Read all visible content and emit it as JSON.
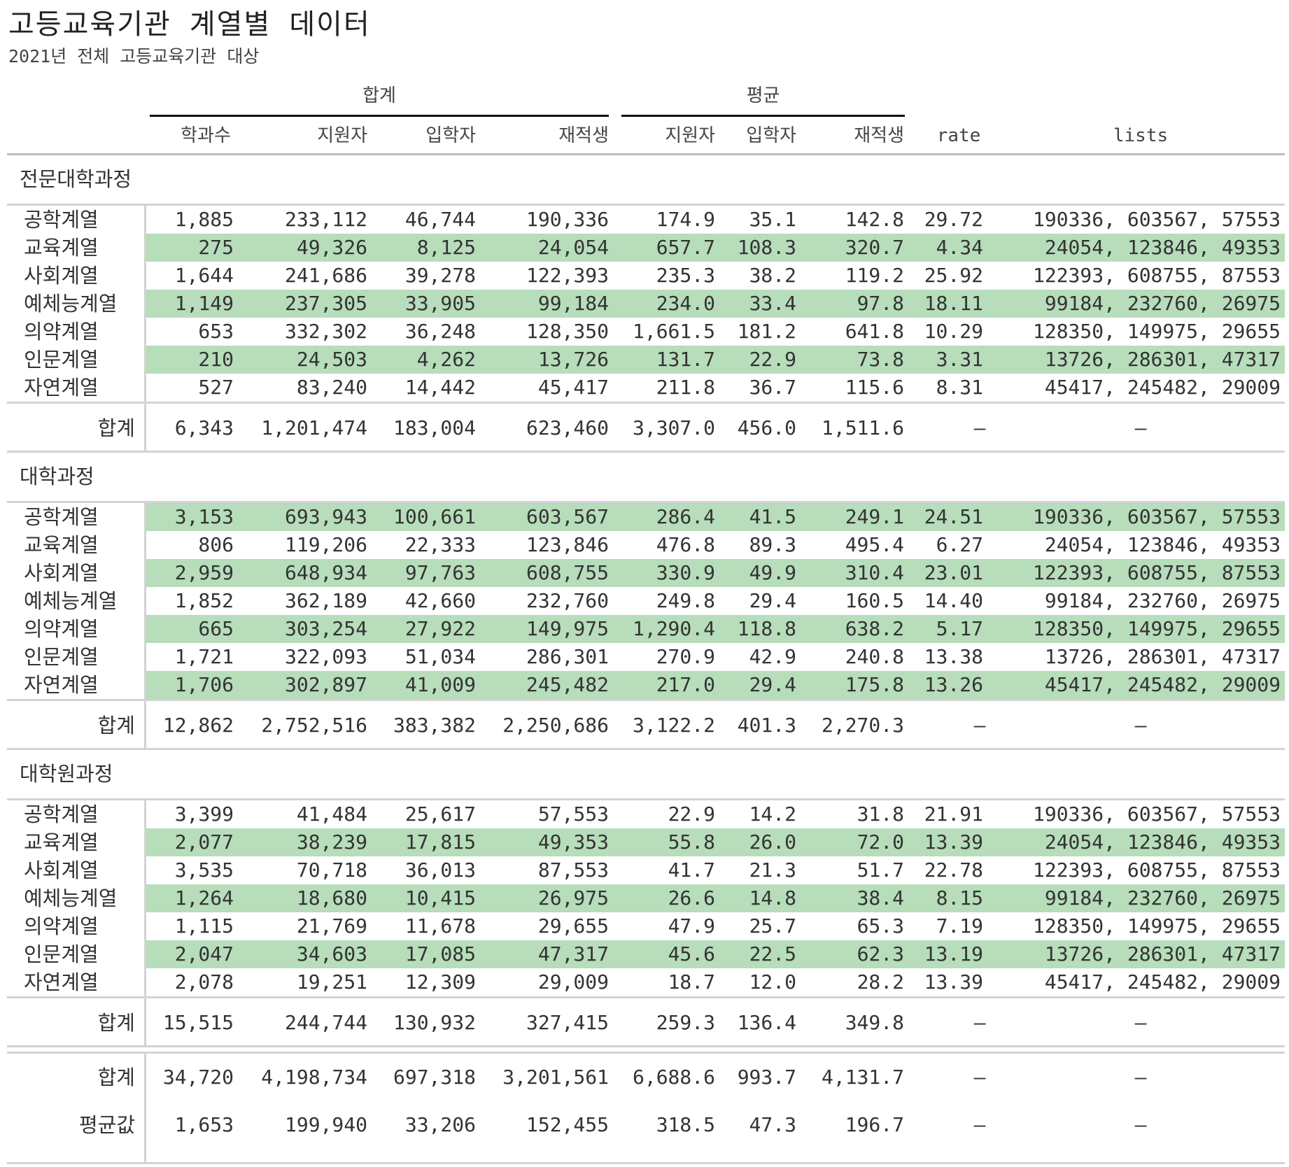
{
  "title": "고등교육기관 계열별 데이터",
  "subtitle": "2021년 전체 고등교육기관 대상",
  "spanners": [
    {
      "label": "합계",
      "first_col": 0,
      "last_col": 3
    },
    {
      "label": "평균",
      "first_col": 4,
      "last_col": 6
    }
  ],
  "columns": [
    "학과수",
    "지원자",
    "입학자",
    "재적생",
    "지원자",
    "입학자",
    "재적생",
    "rate",
    "lists"
  ],
  "groups": [
    {
      "label": "전문대학과정",
      "rows": [
        {
          "label": "공학계열",
          "shaded": false,
          "cells": [
            "1,885",
            "233,112",
            "46,744",
            "190,336",
            "174.9",
            "35.1",
            "142.8",
            "29.72",
            "190336, 603567, 57553"
          ]
        },
        {
          "label": "교육계열",
          "shaded": true,
          "cells": [
            "275",
            "49,326",
            "8,125",
            "24,054",
            "657.7",
            "108.3",
            "320.7",
            "4.34",
            "24054, 123846, 49353"
          ]
        },
        {
          "label": "사회계열",
          "shaded": false,
          "cells": [
            "1,644",
            "241,686",
            "39,278",
            "122,393",
            "235.3",
            "38.2",
            "119.2",
            "25.92",
            "122393, 608755, 87553"
          ]
        },
        {
          "label": "예체능계열",
          "shaded": true,
          "cells": [
            "1,149",
            "237,305",
            "33,905",
            "99,184",
            "234.0",
            "33.4",
            "97.8",
            "18.11",
            "99184, 232760, 26975"
          ]
        },
        {
          "label": "의약계열",
          "shaded": false,
          "cells": [
            "653",
            "332,302",
            "36,248",
            "128,350",
            "1,661.5",
            "181.2",
            "641.8",
            "10.29",
            "128350, 149975, 29655"
          ]
        },
        {
          "label": "인문계열",
          "shaded": true,
          "cells": [
            "210",
            "24,503",
            "4,262",
            "13,726",
            "131.7",
            "22.9",
            "73.8",
            "3.31",
            "13726, 286301, 47317"
          ]
        },
        {
          "label": "자연계열",
          "shaded": false,
          "cells": [
            "527",
            "83,240",
            "14,442",
            "45,417",
            "211.8",
            "36.7",
            "115.6",
            "8.31",
            "45417, 245482, 29009"
          ]
        }
      ],
      "summary": {
        "label": "합계",
        "cells": [
          "6,343",
          "1,201,474",
          "183,004",
          "623,460",
          "3,307.0",
          "456.0",
          "1,511.6",
          "—",
          "—"
        ]
      }
    },
    {
      "label": "대학과정",
      "rows": [
        {
          "label": "공학계열",
          "shaded": true,
          "cells": [
            "3,153",
            "693,943",
            "100,661",
            "603,567",
            "286.4",
            "41.5",
            "249.1",
            "24.51",
            "190336, 603567, 57553"
          ]
        },
        {
          "label": "교육계열",
          "shaded": false,
          "cells": [
            "806",
            "119,206",
            "22,333",
            "123,846",
            "476.8",
            "89.3",
            "495.4",
            "6.27",
            "24054, 123846, 49353"
          ]
        },
        {
          "label": "사회계열",
          "shaded": true,
          "cells": [
            "2,959",
            "648,934",
            "97,763",
            "608,755",
            "330.9",
            "49.9",
            "310.4",
            "23.01",
            "122393, 608755, 87553"
          ]
        },
        {
          "label": "예체능계열",
          "shaded": false,
          "cells": [
            "1,852",
            "362,189",
            "42,660",
            "232,760",
            "249.8",
            "29.4",
            "160.5",
            "14.40",
            "99184, 232760, 26975"
          ]
        },
        {
          "label": "의약계열",
          "shaded": true,
          "cells": [
            "665",
            "303,254",
            "27,922",
            "149,975",
            "1,290.4",
            "118.8",
            "638.2",
            "5.17",
            "128350, 149975, 29655"
          ]
        },
        {
          "label": "인문계열",
          "shaded": false,
          "cells": [
            "1,721",
            "322,093",
            "51,034",
            "286,301",
            "270.9",
            "42.9",
            "240.8",
            "13.38",
            "13726, 286301, 47317"
          ]
        },
        {
          "label": "자연계열",
          "shaded": true,
          "cells": [
            "1,706",
            "302,897",
            "41,009",
            "245,482",
            "217.0",
            "29.4",
            "175.8",
            "13.26",
            "45417, 245482, 29009"
          ]
        }
      ],
      "summary": {
        "label": "합계",
        "cells": [
          "12,862",
          "2,752,516",
          "383,382",
          "2,250,686",
          "3,122.2",
          "401.3",
          "2,270.3",
          "—",
          "—"
        ]
      }
    },
    {
      "label": "대학원과정",
      "rows": [
        {
          "label": "공학계열",
          "shaded": false,
          "cells": [
            "3,399",
            "41,484",
            "25,617",
            "57,553",
            "22.9",
            "14.2",
            "31.8",
            "21.91",
            "190336, 603567, 57553"
          ]
        },
        {
          "label": "교육계열",
          "shaded": true,
          "cells": [
            "2,077",
            "38,239",
            "17,815",
            "49,353",
            "55.8",
            "26.0",
            "72.0",
            "13.39",
            "24054, 123846, 49353"
          ]
        },
        {
          "label": "사회계열",
          "shaded": false,
          "cells": [
            "3,535",
            "70,718",
            "36,013",
            "87,553",
            "41.7",
            "21.3",
            "51.7",
            "22.78",
            "122393, 608755, 87553"
          ]
        },
        {
          "label": "예체능계열",
          "shaded": true,
          "cells": [
            "1,264",
            "18,680",
            "10,415",
            "26,975",
            "26.6",
            "14.8",
            "38.4",
            "8.15",
            "99184, 232760, 26975"
          ]
        },
        {
          "label": "의약계열",
          "shaded": false,
          "cells": [
            "1,115",
            "21,769",
            "11,678",
            "29,655",
            "47.9",
            "25.7",
            "65.3",
            "7.19",
            "128350, 149975, 29655"
          ]
        },
        {
          "label": "인문계열",
          "shaded": true,
          "cells": [
            "2,047",
            "34,603",
            "17,085",
            "47,317",
            "45.6",
            "22.5",
            "62.3",
            "13.19",
            "13726, 286301, 47317"
          ]
        },
        {
          "label": "자연계열",
          "shaded": false,
          "cells": [
            "2,078",
            "19,251",
            "12,309",
            "29,009",
            "18.7",
            "12.0",
            "28.2",
            "13.39",
            "45417, 245482, 29009"
          ]
        }
      ],
      "summary": {
        "label": "합계",
        "cells": [
          "15,515",
          "244,744",
          "130,932",
          "327,415",
          "259.3",
          "136.4",
          "349.8",
          "—",
          "—"
        ]
      }
    }
  ],
  "grand_summary": [
    {
      "label": "합계",
      "cells": [
        "34,720",
        "4,198,734",
        "697,318",
        "3,201,561",
        "6,688.6",
        "993.7",
        "4,131.7",
        "—",
        "—"
      ]
    },
    {
      "label": "평균값",
      "cells": [
        "1,653",
        "199,940",
        "33,206",
        "152,455",
        "318.5",
        "47.3",
        "196.7",
        "—",
        "—"
      ]
    }
  ],
  "colors": {
    "row_highlight": "#b7ddbb",
    "rule": "#d3d3d3",
    "spanner_rule": "#111111"
  }
}
